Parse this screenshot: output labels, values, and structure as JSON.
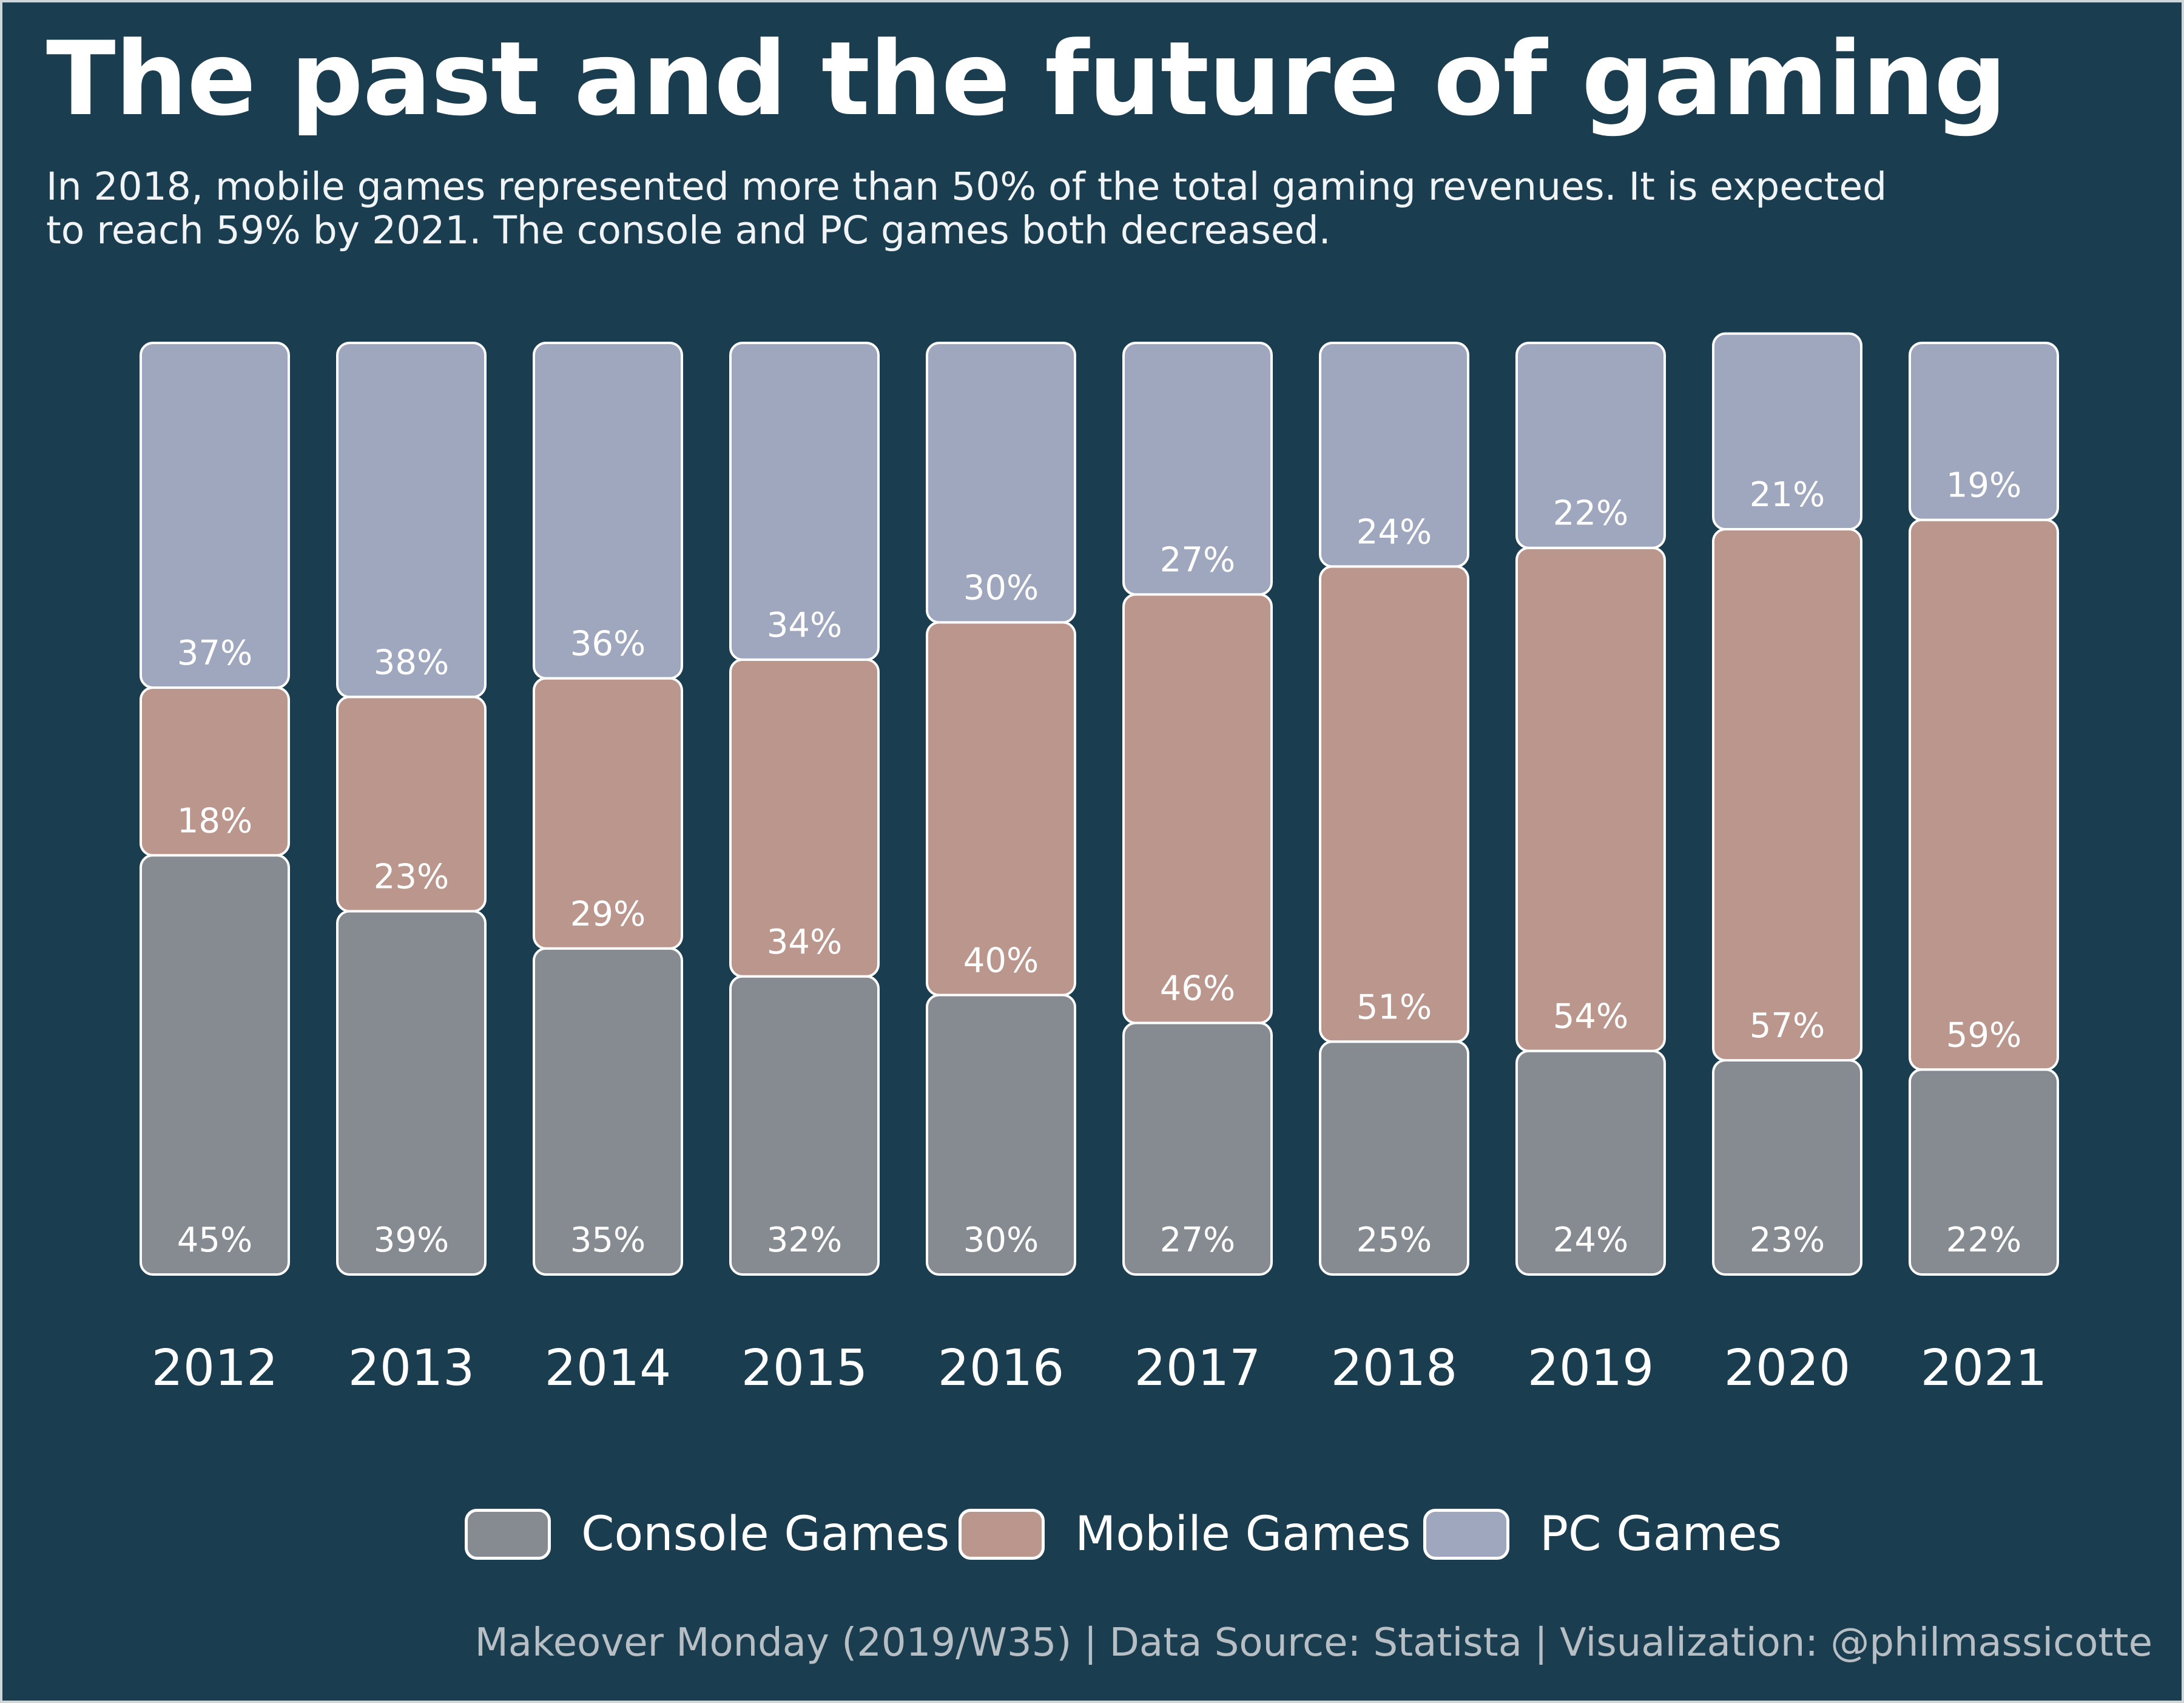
{
  "title": "The past and the future of gaming",
  "subtitle": "In 2018, mobile games represented more than 50% of the total gaming revenues. It is expected to reach 59% by 2021. The console and PC games both decreased.",
  "credit": "Makeover Monday (2019/W35) | Data Source: Statista | Visualization: @philmassicotte",
  "colors": {
    "background": "#1b3d50",
    "console": "#858b91",
    "mobile": "#ba968c",
    "pc": "#9ea7bd",
    "outline": "#ffffff"
  },
  "legend": [
    {
      "label": "Console Games",
      "color": "#858b91"
    },
    {
      "label": "Mobile Games",
      "color": "#ba968c"
    },
    {
      "label": "PC Games",
      "color": "#9ea7bd"
    }
  ],
  "chart_data": {
    "type": "bar",
    "stacked": true,
    "orientation": "vertical",
    "categories": [
      "2012",
      "2013",
      "2014",
      "2015",
      "2016",
      "2017",
      "2018",
      "2019",
      "2020",
      "2021"
    ],
    "series": [
      {
        "name": "Console Games",
        "values": [
          45,
          39,
          35,
          32,
          30,
          27,
          25,
          24,
          23,
          22
        ]
      },
      {
        "name": "Mobile Games",
        "values": [
          18,
          23,
          29,
          34,
          40,
          46,
          51,
          54,
          57,
          59
        ]
      },
      {
        "name": "PC Games",
        "values": [
          37,
          38,
          36,
          34,
          30,
          27,
          24,
          22,
          21,
          19
        ]
      }
    ],
    "value_suffix": "%",
    "data_labels": true,
    "grid": false,
    "legend_position": "bottom"
  }
}
